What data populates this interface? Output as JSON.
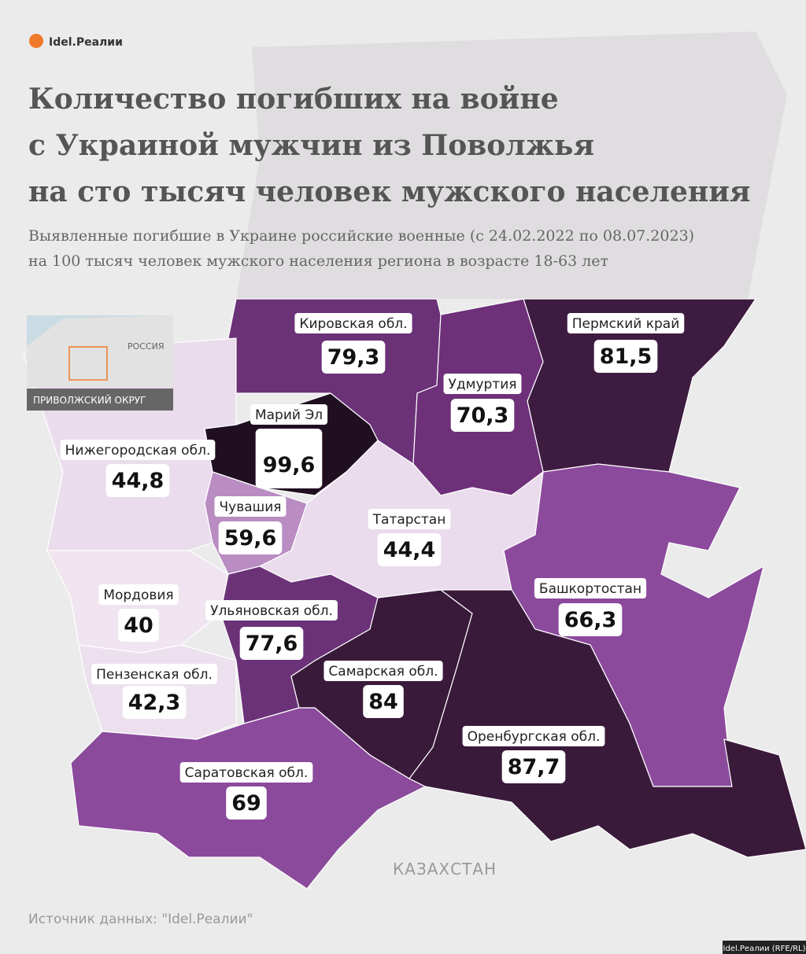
{
  "logo": "Idel.Реалии",
  "title": [
    "Количество погибших на войне",
    "с Украиной мужчин из Поволжья",
    "на сто тысяч человек мужского населения"
  ],
  "subtitle": [
    "Выявленные погибшие в Украине российские военные (с 24.02.2022 по 08.07.2023)",
    "на 100 тысяч человек мужского населения региона в возрасте 18-63 лет"
  ],
  "inset": {
    "country": "РОССИЯ",
    "district": "ПРИВОЛЖСКИЙ ОКРУГ"
  },
  "neighbor": "КАЗАХСТАН",
  "regions": [
    {
      "name": "Кировская обл.",
      "value": 79.3,
      "value_label": "79,3",
      "color": "#6b3278"
    },
    {
      "name": "Пермский край",
      "value": 81.5,
      "value_label": "81,5",
      "color": "#3e1b40"
    },
    {
      "name": "Удмуртия",
      "value": 70.3,
      "value_label": "70,3",
      "color": "#6d3079"
    },
    {
      "name": "Марий Эл",
      "value": 99.6,
      "value_label": "99,6",
      "color": "#1f0f20"
    },
    {
      "name": "Нижегородская обл.",
      "value": 44.8,
      "value_label": "44,8",
      "color": "#eadcec"
    },
    {
      "name": "Чувашия",
      "value": 59.6,
      "value_label": "59,6",
      "color": "#b98cc2"
    },
    {
      "name": "Татарстан",
      "value": 44.4,
      "value_label": "44,4",
      "color": "#eadcec"
    },
    {
      "name": "Башкортостан",
      "value": 66.3,
      "value_label": "66,3",
      "color": "#8b4a9c"
    },
    {
      "name": "Мордовия",
      "value": 40,
      "value_label": "40",
      "color": "#efe4f0"
    },
    {
      "name": "Пензенская обл.",
      "value": 42.3,
      "value_label": "42,3",
      "color": "#ede0ee"
    },
    {
      "name": "Ульяновская обл.",
      "value": 77.6,
      "value_label": "77,6",
      "color": "#6b3278"
    },
    {
      "name": "Самарская обл.",
      "value": 84,
      "value_label": "84",
      "color": "#3a1a3b"
    },
    {
      "name": "Оренбургская обл.",
      "value": 87.7,
      "value_label": "87,7",
      "color": "#3a1a3b"
    },
    {
      "name": "Саратовская обл.",
      "value": 69,
      "value_label": "69",
      "color": "#8b4a9c"
    }
  ],
  "highlight_color": "#d0223a",
  "source": "Источник данных: \"Idel.Реалии\"",
  "credit": "Idel.Реалии (RFE/RL)"
}
